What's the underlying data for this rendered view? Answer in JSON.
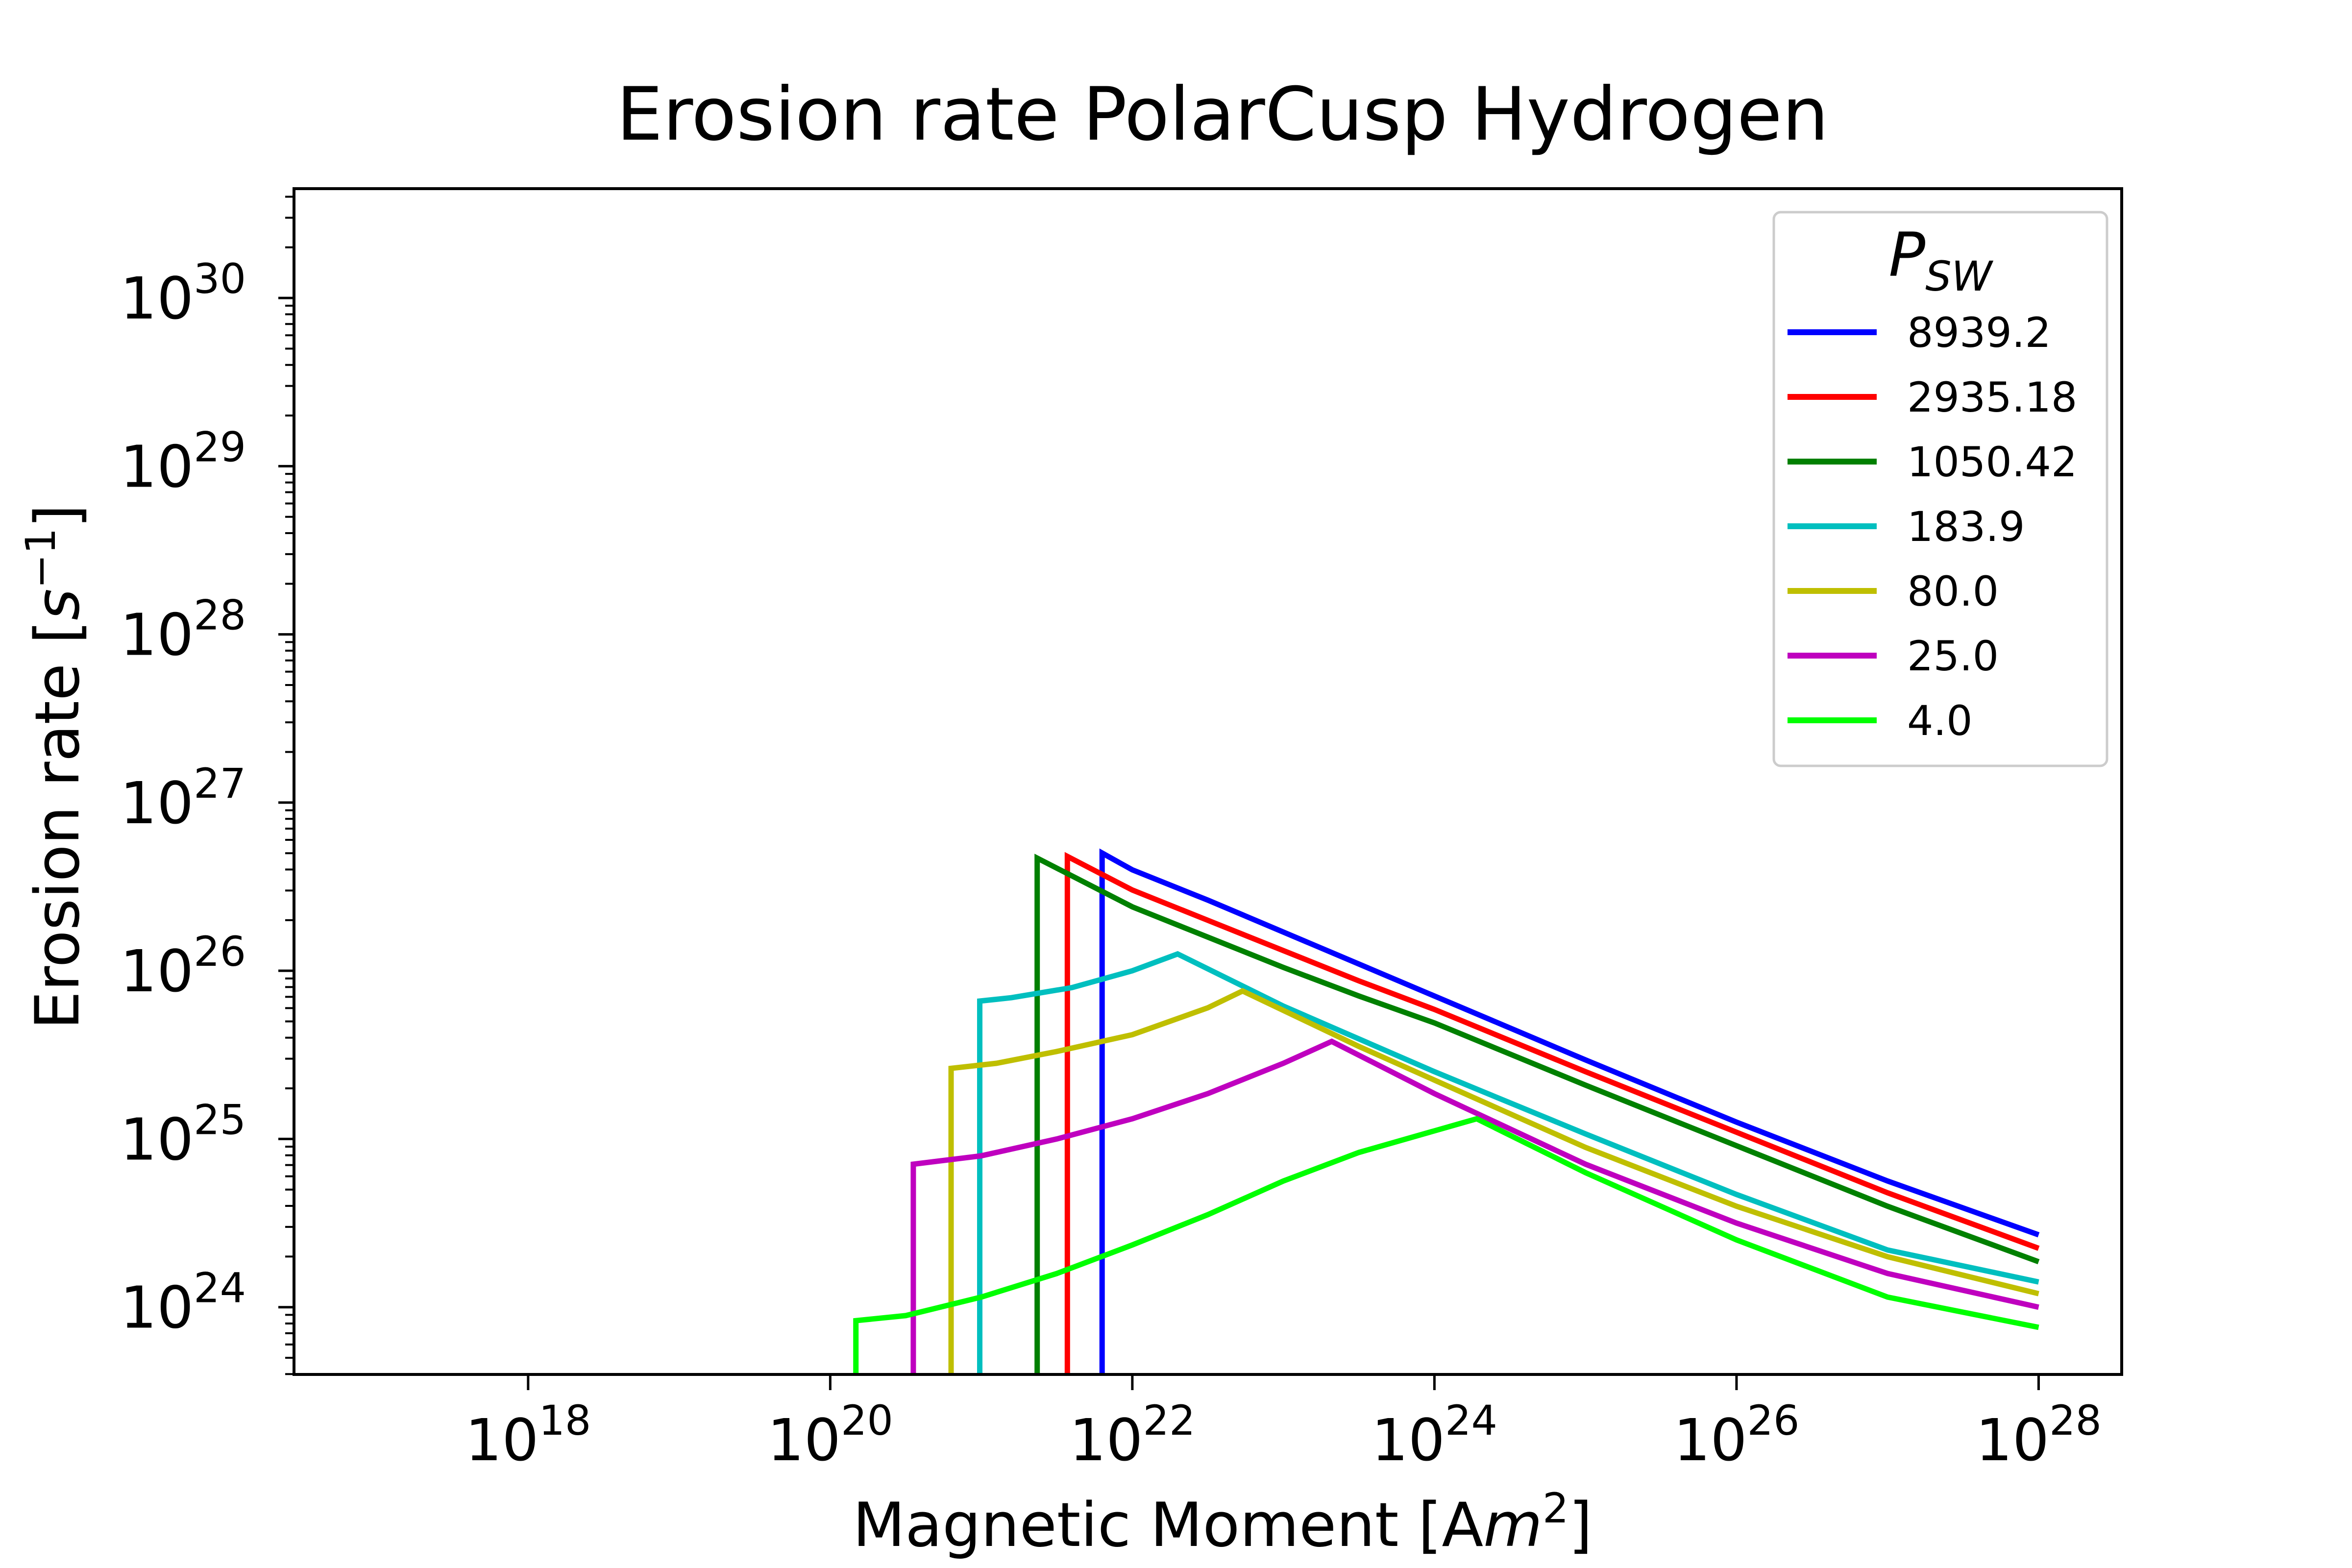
{
  "chart_data": {
    "type": "line",
    "title": "Erosion rate PolarCusp Hydrogen",
    "xlabel": "Magnetic Moment [Am²]",
    "ylabel": "Erosion rate [s⁻¹]",
    "xscale": "log",
    "yscale": "log",
    "xlim_log10": [
      16.45,
      28.55
    ],
    "ylim_log10": [
      23.6,
      30.65
    ],
    "xticks": [
      {
        "exp": 18,
        "label_base": "10",
        "label_exp": "18"
      },
      {
        "exp": 20,
        "label_base": "10",
        "label_exp": "20"
      },
      {
        "exp": 22,
        "label_base": "10",
        "label_exp": "22"
      },
      {
        "exp": 24,
        "label_base": "10",
        "label_exp": "24"
      },
      {
        "exp": 26,
        "label_base": "10",
        "label_exp": "26"
      },
      {
        "exp": 28,
        "label_base": "10",
        "label_exp": "28"
      }
    ],
    "yticks": [
      {
        "exp": 24,
        "label_base": "10",
        "label_exp": "24"
      },
      {
        "exp": 25,
        "label_base": "10",
        "label_exp": "25"
      },
      {
        "exp": 26,
        "label_base": "10",
        "label_exp": "26"
      },
      {
        "exp": 27,
        "label_base": "10",
        "label_exp": "27"
      },
      {
        "exp": 28,
        "label_base": "10",
        "label_exp": "28"
      },
      {
        "exp": 29,
        "label_base": "10",
        "label_exp": "29"
      },
      {
        "exp": 30,
        "label_base": "10",
        "label_exp": "30"
      }
    ],
    "grid": false,
    "legend": {
      "title": "P_SW",
      "title_main": "P",
      "title_sub": "SW",
      "placement": "top-right"
    },
    "series": [
      {
        "name": "8939.2",
        "color": "#0000ff",
        "points_log10": [
          [
            21.8,
            23.6
          ],
          [
            21.8,
            26.7
          ],
          [
            22.0,
            26.6
          ],
          [
            22.5,
            26.42
          ],
          [
            23.0,
            26.23
          ],
          [
            23.5,
            26.04
          ],
          [
            24.0,
            25.85
          ],
          [
            25.0,
            25.47
          ],
          [
            26.0,
            25.1
          ],
          [
            27.0,
            24.75
          ],
          [
            28.0,
            24.43
          ]
        ]
      },
      {
        "name": "2935.18",
        "color": "#ff0000",
        "points_log10": [
          [
            21.57,
            23.6
          ],
          [
            21.57,
            26.68
          ],
          [
            22.0,
            26.48
          ],
          [
            22.5,
            26.3
          ],
          [
            23.0,
            26.12
          ],
          [
            23.5,
            25.94
          ],
          [
            24.0,
            25.77
          ],
          [
            25.0,
            25.4
          ],
          [
            26.0,
            25.04
          ],
          [
            27.0,
            24.68
          ],
          [
            28.0,
            24.35
          ]
        ]
      },
      {
        "name": "1050.42",
        "color": "#008000",
        "points_log10": [
          [
            21.37,
            23.6
          ],
          [
            21.37,
            26.67
          ],
          [
            22.0,
            26.38
          ],
          [
            22.5,
            26.2
          ],
          [
            23.0,
            26.02
          ],
          [
            23.5,
            25.85
          ],
          [
            24.0,
            25.69
          ],
          [
            25.0,
            25.32
          ],
          [
            26.0,
            24.96
          ],
          [
            27.0,
            24.6
          ],
          [
            28.0,
            24.27
          ]
        ]
      },
      {
        "name": "183.9",
        "color": "#00bfbf",
        "points_log10": [
          [
            20.99,
            23.6
          ],
          [
            20.99,
            25.82
          ],
          [
            21.2,
            25.84
          ],
          [
            21.6,
            25.9
          ],
          [
            22.0,
            26.0
          ],
          [
            22.3,
            26.1
          ],
          [
            23.0,
            25.79
          ],
          [
            24.0,
            25.4
          ],
          [
            25.0,
            25.03
          ],
          [
            26.0,
            24.67
          ],
          [
            27.0,
            24.34
          ],
          [
            28.0,
            24.15
          ]
        ]
      },
      {
        "name": "80.0",
        "color": "#bfbf00",
        "points_log10": [
          [
            20.8,
            23.6
          ],
          [
            20.8,
            25.42
          ],
          [
            21.1,
            25.45
          ],
          [
            21.5,
            25.52
          ],
          [
            22.0,
            25.62
          ],
          [
            22.5,
            25.78
          ],
          [
            22.73,
            25.88
          ],
          [
            23.5,
            25.55
          ],
          [
            24.0,
            25.35
          ],
          [
            25.0,
            24.95
          ],
          [
            26.0,
            24.6
          ],
          [
            27.0,
            24.3
          ],
          [
            28.0,
            24.08
          ]
        ]
      },
      {
        "name": "25.0",
        "color": "#bf00bf",
        "points_log10": [
          [
            20.55,
            23.6
          ],
          [
            20.55,
            24.85
          ],
          [
            21.0,
            24.9
          ],
          [
            21.5,
            25.0
          ],
          [
            22.0,
            25.12
          ],
          [
            22.5,
            25.27
          ],
          [
            23.0,
            25.45
          ],
          [
            23.32,
            25.58
          ],
          [
            24.0,
            25.27
          ],
          [
            25.0,
            24.85
          ],
          [
            26.0,
            24.5
          ],
          [
            27.0,
            24.2
          ],
          [
            28.0,
            24.0
          ]
        ]
      },
      {
        "name": "4.0",
        "color": "#00ff00",
        "points_log10": [
          [
            20.17,
            23.6
          ],
          [
            20.17,
            23.92
          ],
          [
            20.5,
            23.95
          ],
          [
            21.0,
            24.06
          ],
          [
            21.5,
            24.2
          ],
          [
            22.0,
            24.37
          ],
          [
            22.5,
            24.55
          ],
          [
            23.0,
            24.75
          ],
          [
            23.5,
            24.92
          ],
          [
            24.28,
            25.12
          ],
          [
            25.0,
            24.8
          ],
          [
            26.0,
            24.4
          ],
          [
            27.0,
            24.06
          ],
          [
            28.0,
            23.88
          ]
        ]
      }
    ]
  }
}
